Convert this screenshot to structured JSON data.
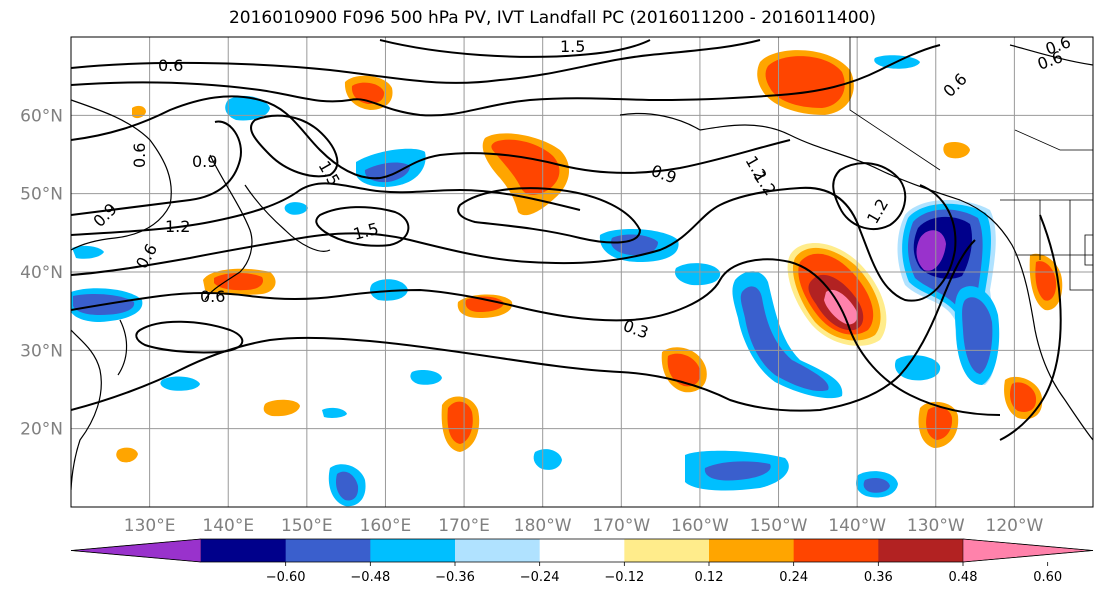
{
  "title": "2016010900 F096 500 hPa PV, IVT Landfall PC (2016011200 - 2016011400)",
  "map": {
    "projection": "equirectangular",
    "lon_range": [
      120,
      250
    ],
    "lat_range": [
      10,
      70
    ],
    "gridlines": true,
    "lat_ticks": [
      {
        "value": 60,
        "label": "60°N"
      },
      {
        "value": 50,
        "label": "50°N"
      },
      {
        "value": 40,
        "label": "40°N"
      },
      {
        "value": 30,
        "label": "30°N"
      },
      {
        "value": 20,
        "label": "20°N"
      }
    ],
    "lon_ticks": [
      {
        "value": 130,
        "label": "130°E"
      },
      {
        "value": 140,
        "label": "140°E"
      },
      {
        "value": 150,
        "label": "150°E"
      },
      {
        "value": 160,
        "label": "160°E"
      },
      {
        "value": 170,
        "label": "170°E"
      },
      {
        "value": 180,
        "label": "180°W"
      },
      {
        "value": 190,
        "label": "170°W"
      },
      {
        "value": 200,
        "label": "160°W"
      },
      {
        "value": 210,
        "label": "150°W"
      },
      {
        "value": 220,
        "label": "140°W"
      },
      {
        "value": 230,
        "label": "130°W"
      },
      {
        "value": 240,
        "label": "120°W"
      }
    ],
    "contour_labels": [
      "0.6",
      "1.5",
      "0.9",
      "1.5",
      "1.2",
      "0.9",
      "0.6",
      "1.5",
      "1.2",
      "0.6",
      "0.6",
      "0.9",
      "1.2",
      "1.2",
      "0.6",
      "0.3",
      "0.6",
      "0.6"
    ]
  },
  "colorbar": {
    "extend": "both",
    "colors": [
      "#9932cc",
      "#00008b",
      "#3a5fcd",
      "#00bfff",
      "#b0e2ff",
      "#ffffff",
      "#ffec8b",
      "#ffa500",
      "#ff4500",
      "#b22222",
      "#ff82ab"
    ],
    "tick_labels": [
      "−0.60",
      "−0.48",
      "−0.36",
      "−0.24",
      "−0.12",
      "0.12",
      "0.24",
      "0.36",
      "0.48",
      "0.60"
    ]
  },
  "chart_data": {
    "type": "heatmap",
    "title": "2016010900 F096 500 hPa PV, IVT Landfall PC (2016011200 - 2016011400)",
    "field": "500 hPa PV, IVT Landfall PC",
    "contour_levels": [
      0.3,
      0.6,
      0.9,
      1.2,
      1.5
    ],
    "shading_levels": [
      -0.6,
      -0.48,
      -0.36,
      -0.24,
      -0.12,
      0.12,
      0.24,
      0.36,
      0.48,
      0.6
    ],
    "features": [
      {
        "lon": 220,
        "lat": 36.5,
        "value": 0.62
      },
      {
        "lon": 230,
        "lat": 42,
        "value": -0.62
      },
      {
        "lon": 237,
        "lat": 37,
        "value": -0.42
      },
      {
        "lon": 243,
        "lat": 39,
        "value": 0.33
      },
      {
        "lon": 212,
        "lat": 31,
        "value": -0.4
      },
      {
        "lon": 218,
        "lat": 63,
        "value": 0.4
      },
      {
        "lon": 178,
        "lat": 52,
        "value": 0.38
      },
      {
        "lon": 139,
        "lat": 39.5,
        "value": 0.36
      },
      {
        "lon": 125,
        "lat": 35,
        "value": -0.38
      },
      {
        "lon": 172,
        "lat": 35,
        "value": 0.38
      },
      {
        "lon": 170,
        "lat": 21,
        "value": 0.38
      },
      {
        "lon": 227,
        "lat": 20,
        "value": 0.38
      },
      {
        "lon": 240,
        "lat": 24,
        "value": 0.38
      },
      {
        "lon": 202,
        "lat": 27,
        "value": 0.3
      },
      {
        "lon": 207,
        "lat": 16,
        "value": -0.3
      },
      {
        "lon": 155,
        "lat": 15,
        "value": -0.36
      },
      {
        "lon": 193,
        "lat": 43,
        "value": -0.26
      },
      {
        "lon": 161,
        "lat": 52,
        "value": -0.28
      },
      {
        "lon": 158,
        "lat": 64,
        "value": 0.34
      }
    ]
  }
}
